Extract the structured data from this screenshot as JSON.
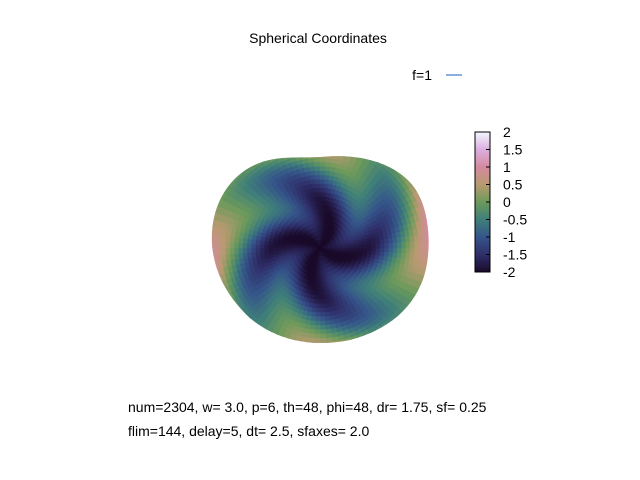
{
  "chart_data": {
    "type": "heatmap",
    "title": "Spherical Coordinates",
    "legend": {
      "label": "f=1",
      "color": "#3a78c9",
      "placement": "top-right"
    },
    "colorbar": {
      "range": [
        -2,
        2
      ],
      "ticks": [
        "2",
        "1.5",
        "1",
        "0.5",
        "0",
        "-0.5",
        "-1",
        "-1.5",
        "-2"
      ],
      "palette": [
        "#1a0a2a",
        "#2f2f6a",
        "#35558a",
        "#3f7f7a",
        "#6c9a5a",
        "#b89a70",
        "#d48aa0",
        "#dcaee0",
        "#f2f8ff"
      ]
    },
    "surface": {
      "description_values": "swirl pattern of f over projected sphere",
      "arms": 4,
      "center_value": -2,
      "edge_value": 0.5
    },
    "annotations": [
      "num=2304, w=  3.0, p=6, th=48, phi=48, dr= 1.75, sf= 0.25",
      "flim=144, delay=5, dt=  2.5, sfaxes=  2.0"
    ]
  }
}
